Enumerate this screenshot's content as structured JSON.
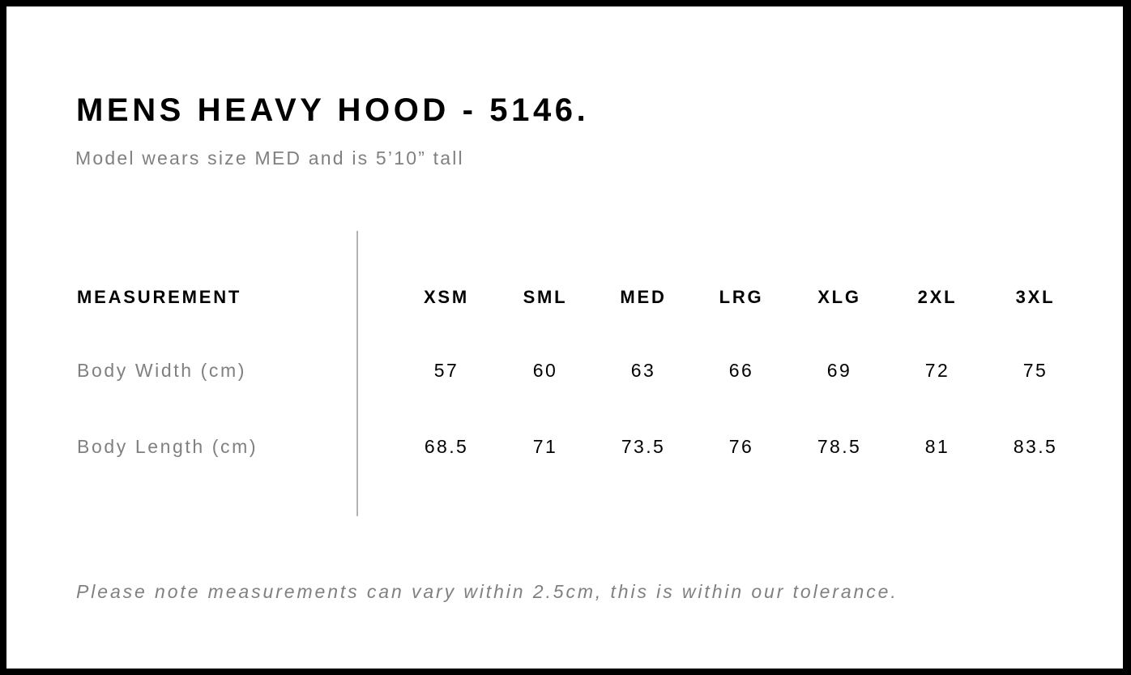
{
  "title": "MENS HEAVY HOOD - 5146.",
  "subtitle": "Model wears size MED and is 5’10” tall",
  "table": {
    "header_label": "MEASUREMENT",
    "sizes": [
      "XSM",
      "SML",
      "MED",
      "LRG",
      "XLG",
      "2XL",
      "3XL"
    ],
    "rows": [
      {
        "label": "Body Width (cm)",
        "values": [
          "57",
          "60",
          "63",
          "66",
          "69",
          "72",
          "75"
        ]
      },
      {
        "label": "Body Length (cm)",
        "values": [
          "68.5",
          "71",
          "73.5",
          "76",
          "78.5",
          "81",
          "83.5"
        ]
      }
    ]
  },
  "note": "Please note measurements can vary within 2.5cm, this is within our tolerance."
}
